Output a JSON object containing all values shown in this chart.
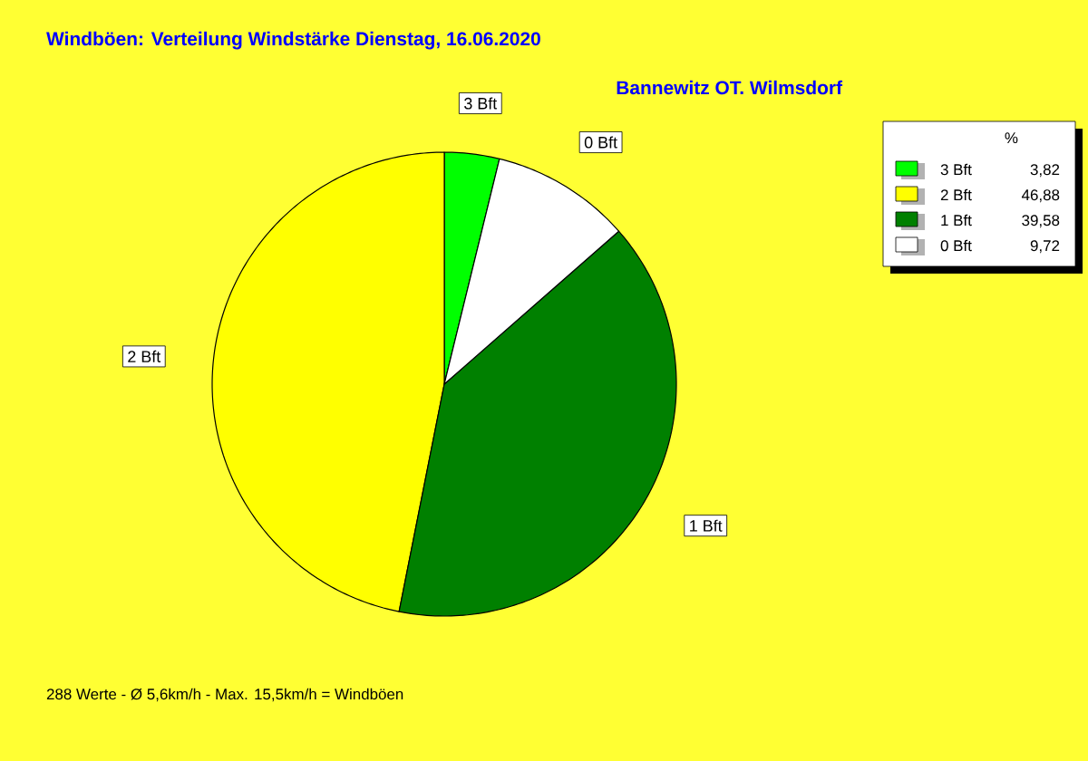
{
  "chart_data": {
    "type": "pie",
    "title": "Windböen: Verteilung Windstärke  Dienstag, 16.06.2020",
    "subtitle": "Bannewitz OT. Wilmsdorf",
    "categories": [
      "3 Bft",
      "2 Bft",
      "1 Bft",
      "0 Bft"
    ],
    "values": [
      3.82,
      46.88,
      39.58,
      9.72
    ],
    "value_labels": [
      "3,82",
      "46,88",
      "39,58",
      "9,72"
    ],
    "colors": [
      "#00ff00",
      "#ffff00",
      "#008000",
      "#ffffff"
    ],
    "legend": "top right",
    "legend_title": "%",
    "annotations": [
      "288 Werte   -   Ø 5,6km/h  -  Max. 15,5km/h = Windböen"
    ]
  }
}
